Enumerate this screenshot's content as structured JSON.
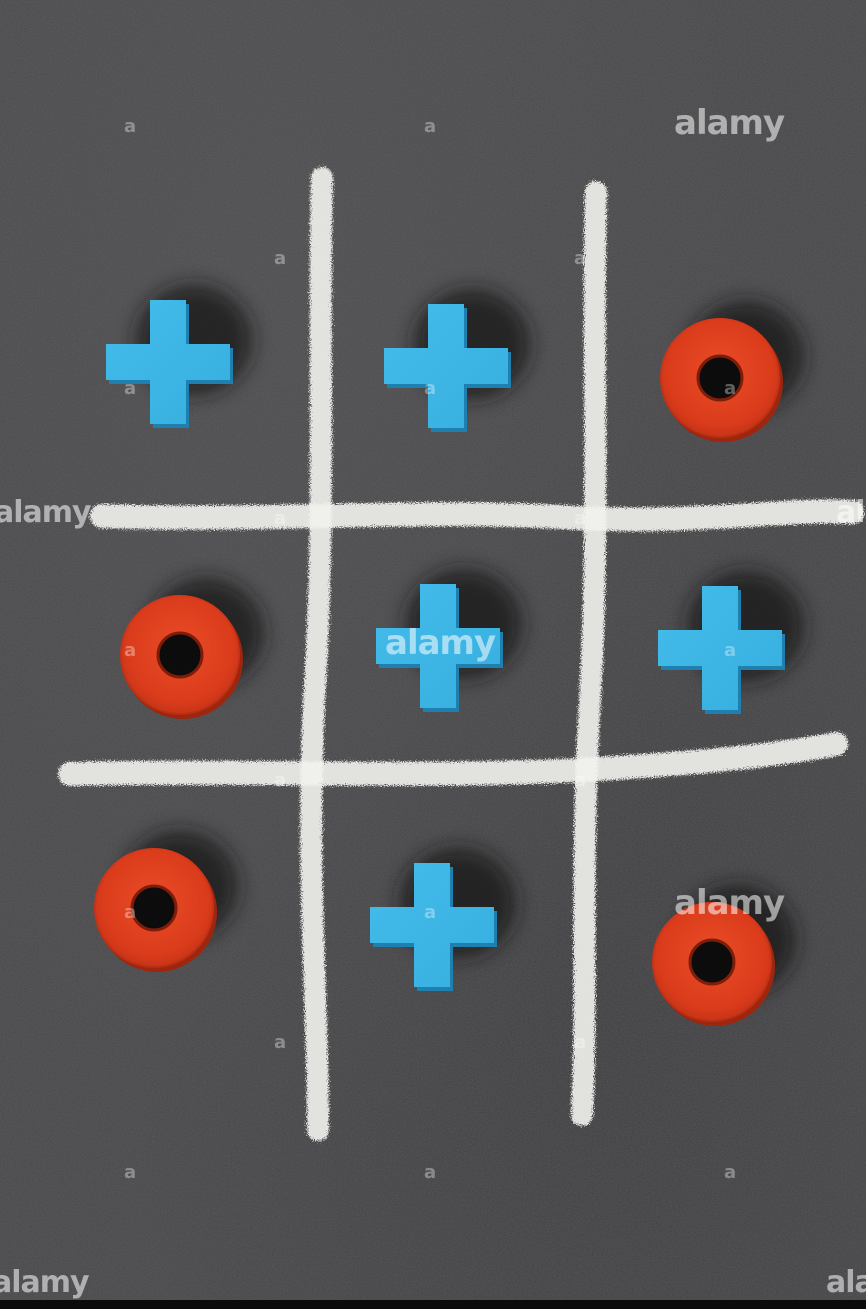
{
  "watermark": {
    "text": "alamy",
    "mark": "a"
  },
  "game": {
    "grid": [
      [
        "X",
        "X",
        "O"
      ],
      [
        "O",
        "X",
        "X"
      ],
      [
        "O",
        "X",
        "O"
      ]
    ],
    "colors": {
      "board": "#464648",
      "chalk": "#f2f2ee",
      "x_piece": "#3cb6e6",
      "o_piece": "#e0411f"
    }
  }
}
